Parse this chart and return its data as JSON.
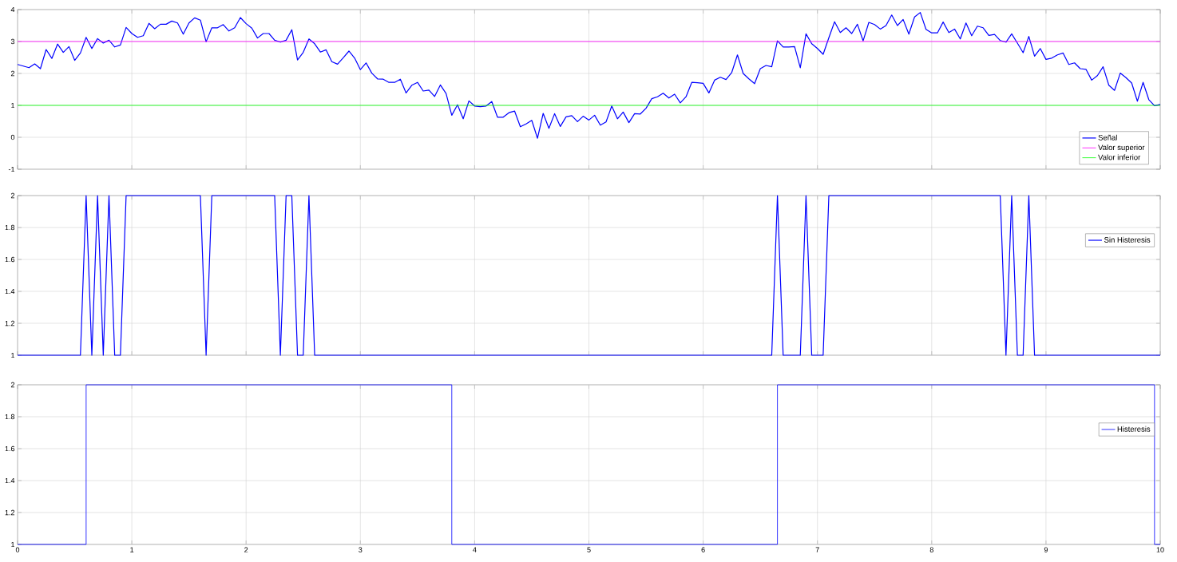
{
  "chart_data": [
    {
      "type": "line",
      "xlim": [
        0,
        10
      ],
      "xticks": [
        0,
        1,
        2,
        3,
        4,
        5,
        6,
        7,
        8,
        9,
        10
      ],
      "ylim": [
        -1,
        4
      ],
      "yticks": [
        -1,
        0,
        1,
        2,
        3,
        4
      ],
      "grid": true,
      "legend": "bottom right",
      "tick_labels": "y",
      "series": [
        {
          "name": "Señal",
          "color": "#0000ff",
          "x": [
            0,
            0.05,
            0.1,
            0.15,
            0.2,
            0.25,
            0.3,
            0.35,
            0.4,
            0.45,
            0.5,
            0.55,
            0.6,
            0.65,
            0.7,
            0.75,
            0.8,
            0.85,
            0.9,
            0.95,
            1,
            1.05,
            1.1,
            1.15,
            1.2,
            1.25,
            1.3,
            1.35,
            1.4,
            1.45,
            1.5,
            1.55,
            1.6,
            1.65,
            1.7,
            1.75,
            1.8,
            1.85,
            1.9,
            1.95,
            2,
            2.05,
            2.1,
            2.15,
            2.2,
            2.25,
            2.3,
            2.35,
            2.4,
            2.45,
            2.5,
            2.55,
            2.6,
            2.65,
            2.7,
            2.75,
            2.8,
            2.85,
            2.9,
            2.95,
            3,
            3.05,
            3.1,
            3.15,
            3.2,
            3.25,
            3.3,
            3.35,
            3.4,
            3.45,
            3.5,
            3.55,
            3.6,
            3.65,
            3.7,
            3.75,
            3.8,
            3.85,
            3.9,
            3.95,
            4,
            4.05,
            4.1,
            4.15,
            4.2,
            4.25,
            4.3,
            4.35,
            4.4,
            4.45,
            4.5,
            4.55,
            4.6,
            4.65,
            4.7,
            4.75,
            4.8,
            4.85,
            4.9,
            4.95,
            5,
            5.05,
            5.1,
            5.15,
            5.2,
            5.25,
            5.3,
            5.35,
            5.4,
            5.45,
            5.5,
            5.55,
            5.6,
            5.65,
            5.7,
            5.75,
            5.8,
            5.85,
            5.9,
            5.95,
            6,
            6.05,
            6.1,
            6.15,
            6.2,
            6.25,
            6.3,
            6.35,
            6.4,
            6.45,
            6.5,
            6.55,
            6.6,
            6.65,
            6.7,
            6.75,
            6.8,
            6.85,
            6.9,
            6.95,
            7,
            7.05,
            7.1,
            7.15,
            7.2,
            7.25,
            7.3,
            7.35,
            7.4,
            7.45,
            7.5,
            7.55,
            7.6,
            7.65,
            7.7,
            7.75,
            7.8,
            7.85,
            7.9,
            7.95,
            8,
            8.05,
            8.1,
            8.15,
            8.2,
            8.25,
            8.3,
            8.35,
            8.4,
            8.45,
            8.5,
            8.55,
            8.6,
            8.65,
            8.7,
            8.75,
            8.8,
            8.85,
            8.9,
            8.95,
            9,
            9.05,
            9.1,
            9.15,
            9.2,
            9.25,
            9.3,
            9.35,
            9.4,
            9.45,
            9.5,
            9.55,
            9.6,
            9.65,
            9.7,
            9.75,
            9.8,
            9.85,
            9.9,
            9.95,
            10
          ],
          "values": [
            2.28,
            2.23,
            2.18,
            2.3,
            2.15,
            2.75,
            2.47,
            2.92,
            2.66,
            2.84,
            2.41,
            2.64,
            3.13,
            2.78,
            3.09,
            2.95,
            3.04,
            2.83,
            2.89,
            3.44,
            3.25,
            3.13,
            3.18,
            3.57,
            3.4,
            3.54,
            3.54,
            3.64,
            3.58,
            3.23,
            3.58,
            3.74,
            3.67,
            2.99,
            3.43,
            3.43,
            3.53,
            3.33,
            3.43,
            3.75,
            3.56,
            3.42,
            3.11,
            3.25,
            3.25,
            3.04,
            2.98,
            3.04,
            3.37,
            2.42,
            2.66,
            3.08,
            2.93,
            2.67,
            2.74,
            2.37,
            2.29,
            2.49,
            2.7,
            2.48,
            2.12,
            2.33,
            2.01,
            1.83,
            1.82,
            1.72,
            1.72,
            1.82,
            1.39,
            1.63,
            1.72,
            1.45,
            1.48,
            1.28,
            1.64,
            1.37,
            0.69,
            1.02,
            0.58,
            1.14,
            0.98,
            0.96,
            0.98,
            1.12,
            0.63,
            0.63,
            0.77,
            0.82,
            0.33,
            0.42,
            0.53,
            -0.03,
            0.75,
            0.28,
            0.74,
            0.34,
            0.64,
            0.68,
            0.49,
            0.66,
            0.54,
            0.69,
            0.38,
            0.48,
            0.98,
            0.58,
            0.79,
            0.46,
            0.74,
            0.73,
            0.91,
            1.21,
            1.27,
            1.38,
            1.23,
            1.35,
            1.08,
            1.27,
            1.72,
            1.71,
            1.69,
            1.39,
            1.79,
            1.88,
            1.81,
            2.03,
            2.58,
            2.0,
            1.83,
            1.68,
            2.15,
            2.25,
            2.21,
            3.02,
            2.83,
            2.83,
            2.84,
            2.18,
            3.24,
            2.93,
            2.78,
            2.6,
            3.12,
            3.62,
            3.28,
            3.43,
            3.25,
            3.54,
            3.02,
            3.6,
            3.53,
            3.39,
            3.5,
            3.83,
            3.5,
            3.69,
            3.23,
            3.77,
            3.91,
            3.38,
            3.27,
            3.27,
            3.61,
            3.28,
            3.39,
            3.08,
            3.58,
            3.18,
            3.48,
            3.43,
            3.19,
            3.22,
            3.03,
            2.98,
            3.24,
            2.95,
            2.65,
            3.16,
            2.54,
            2.78,
            2.44,
            2.48,
            2.58,
            2.64,
            2.28,
            2.33,
            2.15,
            2.13,
            1.79,
            1.93,
            2.21,
            1.63,
            1.47,
            2.01,
            1.87,
            1.7,
            1.13,
            1.72,
            1.18,
            0.99,
            1.03
          ]
        },
        {
          "name": "Valor superior",
          "color": "#ff00ff",
          "type": "step",
          "x": [
            0,
            10
          ],
          "values": [
            3,
            3
          ]
        },
        {
          "name": "Valor inferior",
          "color": "#00ff00",
          "type": "step",
          "x": [
            0,
            10
          ],
          "values": [
            1,
            1
          ]
        }
      ]
    },
    {
      "type": "line",
      "xlim": [
        0,
        10
      ],
      "xticks": [
        0,
        1,
        2,
        3,
        4,
        5,
        6,
        7,
        8,
        9,
        10
      ],
      "ylim": [
        1,
        2
      ],
      "yticks": [
        1,
        1.2,
        1.4,
        1.6,
        1.8,
        2
      ],
      "grid": true,
      "legend": "right",
      "tick_labels": "y",
      "series": [
        {
          "name": "Sin Histeresis",
          "color": "#0000ff",
          "x": [
            0,
            0.55,
            0.6,
            0.65,
            0.7,
            0.75,
            0.8,
            0.85,
            0.9,
            0.95,
            1.6,
            1.65,
            1.7,
            2.25,
            2.3,
            2.35,
            2.4,
            2.45,
            2.5,
            2.55,
            2.6,
            6.6,
            6.65,
            6.7,
            6.85,
            6.9,
            6.95,
            7.05,
            7.1,
            8.6,
            8.65,
            8.7,
            8.75,
            8.8,
            8.85,
            8.9,
            10
          ],
          "values": [
            1,
            1,
            2,
            1,
            2,
            1,
            2,
            1,
            1,
            2,
            2,
            1,
            2,
            2,
            1,
            2,
            2,
            1,
            1,
            2,
            1,
            1,
            2,
            1,
            1,
            2,
            1,
            1,
            2,
            2,
            1,
            2,
            1,
            1,
            2,
            1,
            1
          ]
        }
      ]
    },
    {
      "type": "step",
      "xlim": [
        0,
        10
      ],
      "xticks": [
        0,
        1,
        2,
        3,
        4,
        5,
        6,
        7,
        8,
        9,
        10
      ],
      "ylim": [
        1,
        2
      ],
      "yticks": [
        1,
        1.2,
        1.4,
        1.6,
        1.8,
        2
      ],
      "grid": true,
      "legend": "right",
      "series": [
        {
          "name": "Histeresis",
          "color": "#0000ff",
          "x": [
            0,
            0.6,
            3.8,
            6.65,
            9.95,
            10
          ],
          "values": [
            1,
            2,
            1,
            2,
            1,
            1
          ]
        }
      ]
    }
  ]
}
